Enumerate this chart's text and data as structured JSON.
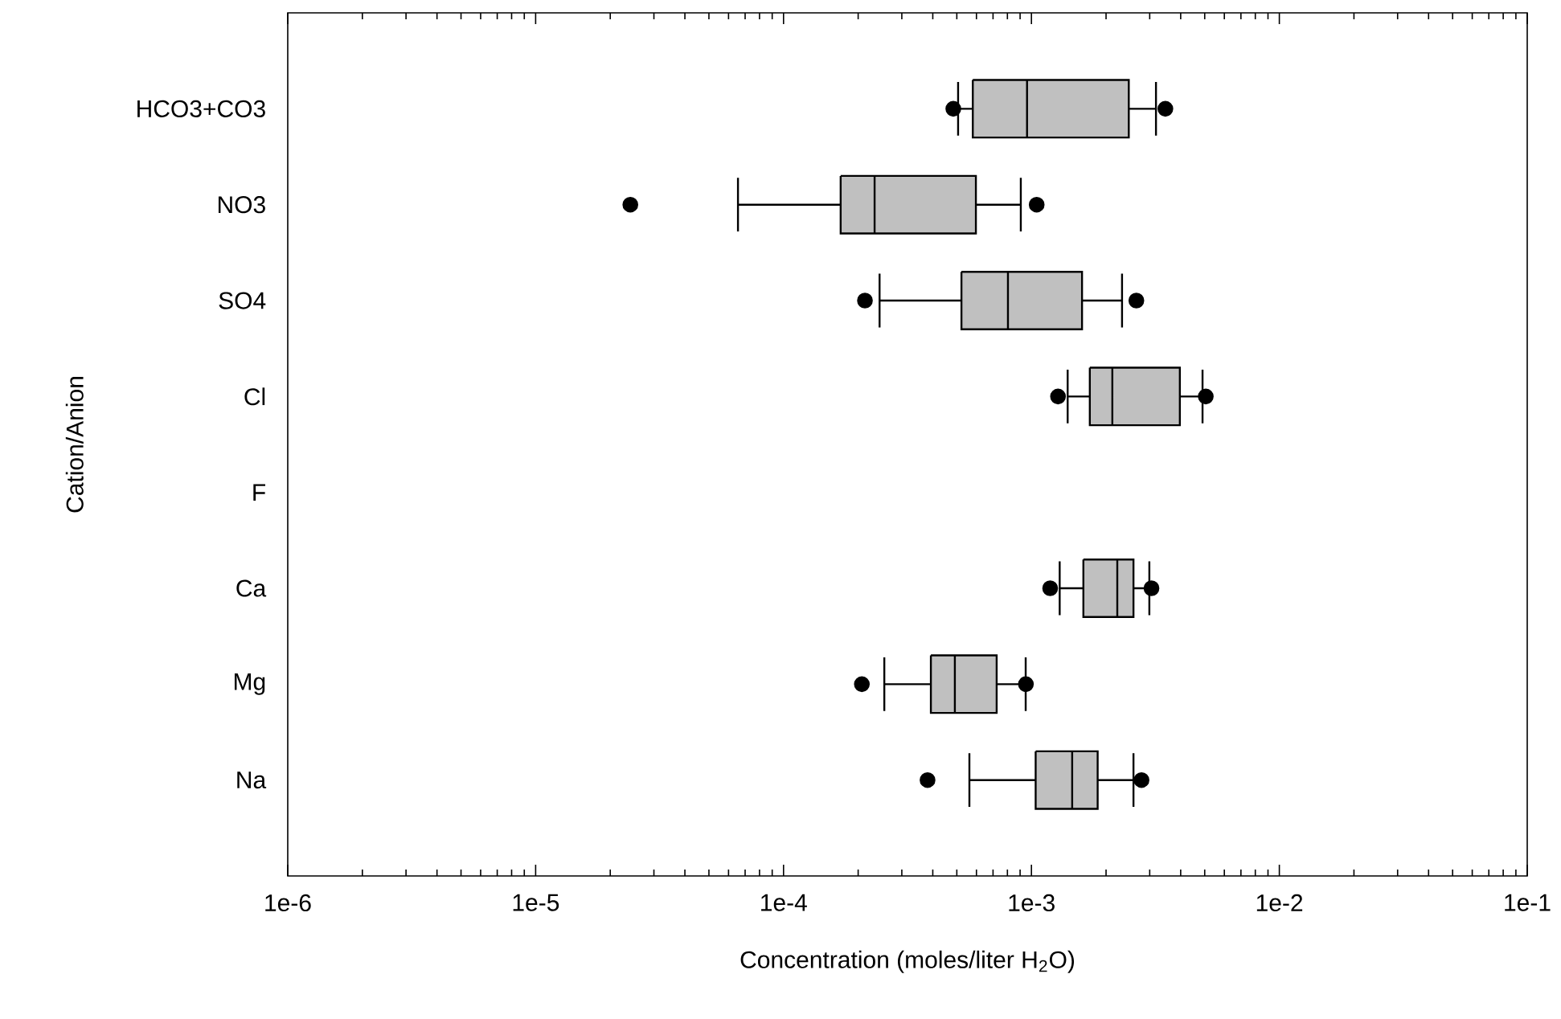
{
  "chart_data": {
    "type": "box",
    "orientation": "horizontal",
    "xlabel": "Concentration (moles/liter H$_{2}$O)",
    "ylabel": "Cation/Anion",
    "log": "x",
    "marker": "circle",
    "color": "#c0c0c0",
    "categories": [
      "HCO3+CO3",
      "NO3",
      "SO4",
      "Cl",
      "F",
      "Ca",
      "Mg",
      "Na"
    ],
    "xlim": [
      1e-06,
      0.1
    ],
    "xticks": [
      {
        "value": 1e-06,
        "label": "1e-6"
      },
      {
        "value": 1e-05,
        "label": "1e-5"
      },
      {
        "value": 0.0001,
        "label": "1e-4"
      },
      {
        "value": 0.001,
        "label": "1e-3"
      },
      {
        "value": 0.01,
        "label": "1e-2"
      },
      {
        "value": 0.1,
        "label": "1e-1"
      }
    ],
    "boxes": [
      {
        "low": 0.000506,
        "q1": 0.00058,
        "median": 0.00096,
        "q3": 0.00247,
        "high": 0.00318,
        "outliers": [
          0.000484,
          0.00347
        ]
      },
      {
        "low": 6.55e-05,
        "q1": 0.00017,
        "median": 0.000233,
        "q3": 0.000597,
        "high": 0.000906,
        "outliers": [
          2.41e-05,
          0.00105
        ]
      },
      {
        "low": 0.000244,
        "q1": 0.000522,
        "median": 0.000804,
        "q3": 0.0016,
        "high": 0.00232,
        "outliers": [
          0.000213,
          0.00265
        ]
      },
      {
        "low": 0.0014,
        "q1": 0.00172,
        "median": 0.00212,
        "q3": 0.00397,
        "high": 0.0049,
        "outliers": [
          0.00128,
          0.00505
        ]
      },
      null,
      {
        "low": 0.0013,
        "q1": 0.00162,
        "median": 0.00222,
        "q3": 0.00258,
        "high": 0.00299,
        "outliers": [
          0.00119,
          0.00305
        ]
      },
      {
        "low": 0.000255,
        "q1": 0.000393,
        "median": 0.000491,
        "q3": 0.000724,
        "high": 0.000948,
        "outliers": [
          0.000207,
          0.00095
        ]
      },
      {
        "low": 0.000562,
        "q1": 0.00104,
        "median": 0.00146,
        "q3": 0.00185,
        "high": 0.00258,
        "outliers": [
          0.000381,
          0.00278
        ]
      }
    ]
  }
}
